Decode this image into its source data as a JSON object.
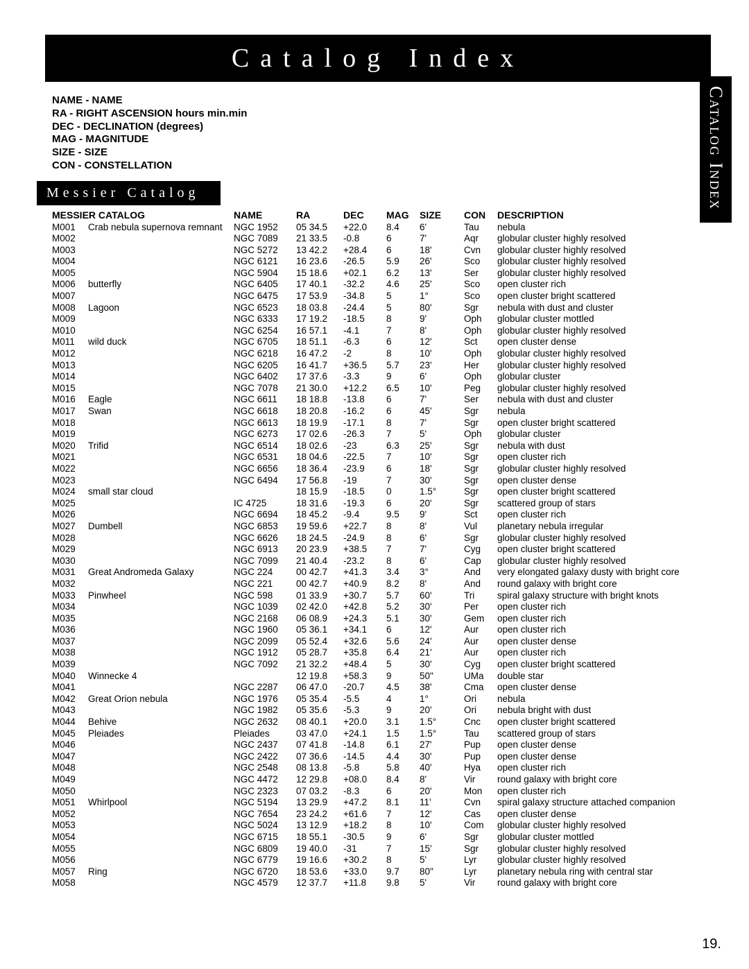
{
  "title": "Catalog Index",
  "side_tab": "Catalog Index",
  "page_number": "19.",
  "legend": [
    "NAME - NAME",
    "RA - RIGHT ASCENSION hours min.min",
    "DEC - DECLINATION (degrees)",
    "MAG - MAGNITUDE",
    "SIZE - SIZE",
    "CON - CONSTELLATION"
  ],
  "section_title": "Messier Catalog",
  "headers": {
    "catalog": "MESSIER CATALOG",
    "name": "NAME",
    "ra": "RA",
    "dec": "DEC",
    "mag": "MAG",
    "size": "SIZE",
    "con": "CON",
    "desc": "DESCRIPTION"
  },
  "rows": [
    {
      "id": "M001",
      "cat": "Crab nebula supernova remnant",
      "name": "NGC 1952",
      "ra": "05 34.5",
      "dec": "+22.0",
      "mag": "8.4",
      "size": "6'",
      "con": "Tau",
      "desc": "nebula"
    },
    {
      "id": "M002",
      "cat": "",
      "name": "NGC 7089",
      "ra": "21 33.5",
      "dec": "-0.8",
      "mag": "6",
      "size": "7'",
      "con": "Aqr",
      "desc": "globular cluster highly resolved"
    },
    {
      "id": "M003",
      "cat": "",
      "name": "NGC 5272",
      "ra": "13 42.2",
      "dec": "+28.4",
      "mag": "6",
      "size": "18'",
      "con": "Cvn",
      "desc": "globular cluster highly resolved"
    },
    {
      "id": "M004",
      "cat": "",
      "name": "NGC 6121",
      "ra": "16 23.6",
      "dec": "-26.5",
      "mag": "5.9",
      "size": "26'",
      "con": "Sco",
      "desc": "globular cluster highly resolved"
    },
    {
      "id": "M005",
      "cat": "",
      "name": "NGC 5904",
      "ra": "15 18.6",
      "dec": "+02.1",
      "mag": "6.2",
      "size": "13'",
      "con": "Ser",
      "desc": "globular cluster highly resolved"
    },
    {
      "id": "M006",
      "cat": "butterfly",
      "name": "NGC 6405",
      "ra": "17 40.1",
      "dec": "-32.2",
      "mag": "4.6",
      "size": "25'",
      "con": "Sco",
      "desc": "open cluster rich"
    },
    {
      "id": "M007",
      "cat": "",
      "name": "NGC 6475",
      "ra": "17 53.9",
      "dec": "-34.8",
      "mag": "5",
      "size": "1°",
      "con": "Sco",
      "desc": "open cluster bright scattered"
    },
    {
      "id": "M008",
      "cat": "Lagoon",
      "name": "NGC 6523",
      "ra": "18 03.8",
      "dec": "-24.4",
      "mag": "5",
      "size": "80'",
      "con": "Sgr",
      "desc": "nebula with dust and cluster"
    },
    {
      "id": "M009",
      "cat": "",
      "name": "NGC 6333",
      "ra": "17 19.2",
      "dec": "-18.5",
      "mag": "8",
      "size": "9'",
      "con": "Oph",
      "desc": "globular cluster mottled"
    },
    {
      "id": "M010",
      "cat": "",
      "name": "NGC 6254",
      "ra": "16 57.1",
      "dec": "-4.1",
      "mag": "7",
      "size": "8'",
      "con": "Oph",
      "desc": "globular cluster highly resolved"
    },
    {
      "id": "M011",
      "cat": "wild duck",
      "name": "NGC 6705",
      "ra": "18 51.1",
      "dec": "-6.3",
      "mag": "6",
      "size": "12'",
      "con": "Sct",
      "desc": "open cluster dense"
    },
    {
      "id": "M012",
      "cat": "",
      "name": "NGC 6218",
      "ra": "16 47.2",
      "dec": "-2",
      "mag": "8",
      "size": "10'",
      "con": "Oph",
      "desc": "globular cluster highly resolved"
    },
    {
      "id": "M013",
      "cat": "",
      "name": "NGC 6205",
      "ra": "16 41.7",
      "dec": "+36.5",
      "mag": "5.7",
      "size": "23'",
      "con": "Her",
      "desc": "globular cluster highly resolved"
    },
    {
      "id": "M014",
      "cat": "",
      "name": "NGC 6402",
      "ra": "17 37.6",
      "dec": "-3.3",
      "mag": "9",
      "size": "6'",
      "con": "Oph",
      "desc": "globular cluster"
    },
    {
      "id": "M015",
      "cat": "",
      "name": "NGC 7078",
      "ra": "21 30.0",
      "dec": "+12.2",
      "mag": "6.5",
      "size": "10'",
      "con": "Peg",
      "desc": "globular cluster highly resolved"
    },
    {
      "id": "M016",
      "cat": "Eagle",
      "name": "NGC 6611",
      "ra": "18 18.8",
      "dec": "-13.8",
      "mag": "6",
      "size": "7'",
      "con": "Ser",
      "desc": "nebula with dust and cluster"
    },
    {
      "id": "M017",
      "cat": "Swan",
      "name": "NGC 6618",
      "ra": "18 20.8",
      "dec": "-16.2",
      "mag": "6",
      "size": "45'",
      "con": "Sgr",
      "desc": "nebula"
    },
    {
      "id": "M018",
      "cat": "",
      "name": "NGC 6613",
      "ra": "18 19.9",
      "dec": "-17.1",
      "mag": "8",
      "size": "7'",
      "con": "Sgr",
      "desc": "open cluster bright scattered"
    },
    {
      "id": "M019",
      "cat": "",
      "name": "NGC 6273",
      "ra": "17 02.6",
      "dec": "-26.3",
      "mag": "7",
      "size": "5'",
      "con": "Oph",
      "desc": "globular cluster"
    },
    {
      "id": "M020",
      "cat": "Trifid",
      "name": "NGC 6514",
      "ra": "18 02.6",
      "dec": "-23",
      "mag": "6.3",
      "size": "25'",
      "con": "Sgr",
      "desc": "nebula with dust"
    },
    {
      "id": "M021",
      "cat": "",
      "name": "NGC 6531",
      "ra": "18 04.6",
      "dec": "-22.5",
      "mag": "7",
      "size": "10'",
      "con": "Sgr",
      "desc": "open cluster rich"
    },
    {
      "id": "M022",
      "cat": "",
      "name": "NGC 6656",
      "ra": "18 36.4",
      "dec": "-23.9",
      "mag": "6",
      "size": "18'",
      "con": "Sgr",
      "desc": "globular cluster highly resolved"
    },
    {
      "id": "M023",
      "cat": "",
      "name": "NGC 6494",
      "ra": "17 56.8",
      "dec": "-19",
      "mag": "7",
      "size": "30'",
      "con": "Sgr",
      "desc": "open cluster dense"
    },
    {
      "id": "M024",
      "cat": "small star cloud",
      "name": "",
      "ra": "18 15.9",
      "dec": "-18.5",
      "mag": "0",
      "size": "1.5°",
      "con": "Sgr",
      "desc": "open cluster bright scattered"
    },
    {
      "id": "M025",
      "cat": "",
      "name": "IC 4725",
      "ra": "18 31.6",
      "dec": "-19.3",
      "mag": "6",
      "size": "20'",
      "con": "Sgr",
      "desc": "scattered group of stars"
    },
    {
      "id": "M026",
      "cat": "",
      "name": "NGC 6694",
      "ra": "18 45.2",
      "dec": "-9.4",
      "mag": "9.5",
      "size": "9'",
      "con": "Sct",
      "desc": "open cluster rich"
    },
    {
      "id": "M027",
      "cat": "Dumbell",
      "name": "NGC 6853",
      "ra": "19 59.6",
      "dec": "+22.7",
      "mag": "8",
      "size": "8'",
      "con": "Vul",
      "desc": "planetary nebula irregular"
    },
    {
      "id": "M028",
      "cat": "",
      "name": "NGC 6626",
      "ra": "18 24.5",
      "dec": "-24.9",
      "mag": "8",
      "size": "6'",
      "con": "Sgr",
      "desc": "globular cluster highly resolved"
    },
    {
      "id": "M029",
      "cat": "",
      "name": "NGC 6913",
      "ra": "20 23.9",
      "dec": "+38.5",
      "mag": "7",
      "size": "7'",
      "con": "Cyg",
      "desc": "open cluster bright scattered"
    },
    {
      "id": "M030",
      "cat": "",
      "name": "NGC 7099",
      "ra": "21 40.4",
      "dec": "-23.2",
      "mag": "8",
      "size": "6'",
      "con": "Cap",
      "desc": "globular cluster highly resolved"
    },
    {
      "id": "M031",
      "cat": "Great Andromeda Galaxy",
      "name": "NGC 224",
      "ra": "00 42.7",
      "dec": "+41.3",
      "mag": "3.4",
      "size": "3°",
      "con": "And",
      "desc": "very elongated galaxy dusty with bright core"
    },
    {
      "id": "M032",
      "cat": "",
      "name": "NGC 221",
      "ra": "00 42.7",
      "dec": "+40.9",
      "mag": "8.2",
      "size": "8'",
      "con": "And",
      "desc": "round galaxy with bright core"
    },
    {
      "id": "M033",
      "cat": "Pinwheel",
      "name": "NGC 598",
      "ra": "01 33.9",
      "dec": "+30.7",
      "mag": "5.7",
      "size": "60'",
      "con": "Tri",
      "desc": "spiral galaxy structure with bright knots"
    },
    {
      "id": "M034",
      "cat": "",
      "name": "NGC 1039",
      "ra": "02 42.0",
      "dec": "+42.8",
      "mag": "5.2",
      "size": "30'",
      "con": "Per",
      "desc": "open cluster rich"
    },
    {
      "id": "M035",
      "cat": "",
      "name": "NGC 2168",
      "ra": "06 08.9",
      "dec": "+24.3",
      "mag": "5.1",
      "size": "30'",
      "con": "Gem",
      "desc": "open cluster rich"
    },
    {
      "id": "M036",
      "cat": "",
      "name": "NGC 1960",
      "ra": "05 36.1",
      "dec": "+34.1",
      "mag": "6",
      "size": "12'",
      "con": "Aur",
      "desc": "open cluster rich"
    },
    {
      "id": "M037",
      "cat": "",
      "name": "NGC 2099",
      "ra": "05 52.4",
      "dec": "+32.6",
      "mag": "5.6",
      "size": "24'",
      "con": "Aur",
      "desc": "open cluster dense"
    },
    {
      "id": "M038",
      "cat": "",
      "name": "NGC 1912",
      "ra": "05 28.7",
      "dec": "+35.8",
      "mag": "6.4",
      "size": "21'",
      "con": "Aur",
      "desc": "open cluster rich"
    },
    {
      "id": "M039",
      "cat": "",
      "name": "NGC 7092",
      "ra": "21 32.2",
      "dec": "+48.4",
      "mag": "5",
      "size": "30'",
      "con": "Cyg",
      "desc": "open cluster bright scattered"
    },
    {
      "id": "M040",
      "cat": "Winnecke 4",
      "name": "",
      "ra": "12 19.8",
      "dec": "+58.3",
      "mag": "9",
      "size": "50\"",
      "con": "UMa",
      "desc": "double star"
    },
    {
      "id": "M041",
      "cat": "",
      "name": "NGC 2287",
      "ra": "06 47.0",
      "dec": "-20.7",
      "mag": "4.5",
      "size": "38'",
      "con": "Cma",
      "desc": "open cluster dense"
    },
    {
      "id": "M042",
      "cat": "Great Orion nebula",
      "name": "NGC 1976",
      "ra": "05 35.4",
      "dec": "-5.5",
      "mag": "4",
      "size": "1°",
      "con": "Ori",
      "desc": "nebula"
    },
    {
      "id": "M043",
      "cat": "",
      "name": "NGC 1982",
      "ra": "05 35.6",
      "dec": "-5.3",
      "mag": "9",
      "size": "20'",
      "con": "Ori",
      "desc": "nebula bright with dust"
    },
    {
      "id": "M044",
      "cat": "Behive",
      "name": "NGC 2632",
      "ra": "08 40.1",
      "dec": "+20.0",
      "mag": "3.1",
      "size": "1.5°",
      "con": "Cnc",
      "desc": "open cluster bright scattered"
    },
    {
      "id": "M045",
      "cat": "Pleiades",
      "name": "Pleiades",
      "ra": "03 47.0",
      "dec": "+24.1",
      "mag": "1.5",
      "size": "1.5°",
      "con": "Tau",
      "desc": "scattered group of stars"
    },
    {
      "id": "M046",
      "cat": "",
      "name": "NGC 2437",
      "ra": "07 41.8",
      "dec": "-14.8",
      "mag": "6.1",
      "size": "27'",
      "con": "Pup",
      "desc": "open cluster dense"
    },
    {
      "id": "M047",
      "cat": "",
      "name": "NGC 2422",
      "ra": "07 36.6",
      "dec": "-14.5",
      "mag": "4.4",
      "size": "30'",
      "con": "Pup",
      "desc": "open cluster dense"
    },
    {
      "id": "M048",
      "cat": "",
      "name": "NGC 2548",
      "ra": "08 13.8",
      "dec": "-5.8",
      "mag": "5.8",
      "size": "40'",
      "con": "Hya",
      "desc": "open cluster rich"
    },
    {
      "id": "M049",
      "cat": "",
      "name": "NGC 4472",
      "ra": "12 29.8",
      "dec": "+08.0",
      "mag": "8.4",
      "size": "8'",
      "con": "Vir",
      "desc": "round galaxy with bright core"
    },
    {
      "id": "M050",
      "cat": "",
      "name": "NGC 2323",
      "ra": "07 03.2",
      "dec": "-8.3",
      "mag": "6",
      "size": "20'",
      "con": "Mon",
      "desc": "open cluster rich"
    },
    {
      "id": "M051",
      "cat": "Whirlpool",
      "name": "NGC 5194",
      "ra": "13 29.9",
      "dec": "+47.2",
      "mag": "8.1",
      "size": "11'",
      "con": "Cvn",
      "desc": "spiral galaxy structure attached companion"
    },
    {
      "id": "M052",
      "cat": "",
      "name": "NGC 7654",
      "ra": "23 24.2",
      "dec": "+61.6",
      "mag": "7",
      "size": "12'",
      "con": "Cas",
      "desc": "open cluster dense"
    },
    {
      "id": "M053",
      "cat": "",
      "name": "NGC 5024",
      "ra": "13 12.9",
      "dec": "+18.2",
      "mag": "8",
      "size": "10'",
      "con": "Com",
      "desc": "globular cluster highly resolved"
    },
    {
      "id": "M054",
      "cat": "",
      "name": "NGC 6715",
      "ra": "18 55.1",
      "dec": "-30.5",
      "mag": "9",
      "size": "6'",
      "con": "Sgr",
      "desc": "globular cluster mottled"
    },
    {
      "id": "M055",
      "cat": "",
      "name": "NGC 6809",
      "ra": "19 40.0",
      "dec": "-31",
      "mag": "7",
      "size": "15'",
      "con": "Sgr",
      "desc": "globular cluster highly resolved"
    },
    {
      "id": "M056",
      "cat": "",
      "name": "NGC 6779",
      "ra": "19 16.6",
      "dec": "+30.2",
      "mag": "8",
      "size": "5'",
      "con": "Lyr",
      "desc": "globular cluster highly resolved"
    },
    {
      "id": "M057",
      "cat": "Ring",
      "name": "NGC 6720",
      "ra": "18 53.6",
      "dec": "+33.0",
      "mag": "9.7",
      "size": "80\"",
      "con": "Lyr",
      "desc": "planetary nebula ring with central star"
    },
    {
      "id": "M058",
      "cat": "",
      "name": "NGC 4579",
      "ra": "12 37.7",
      "dec": "+11.8",
      "mag": "9.8",
      "size": "5'",
      "con": "Vir",
      "desc": "round galaxy with bright core"
    }
  ]
}
